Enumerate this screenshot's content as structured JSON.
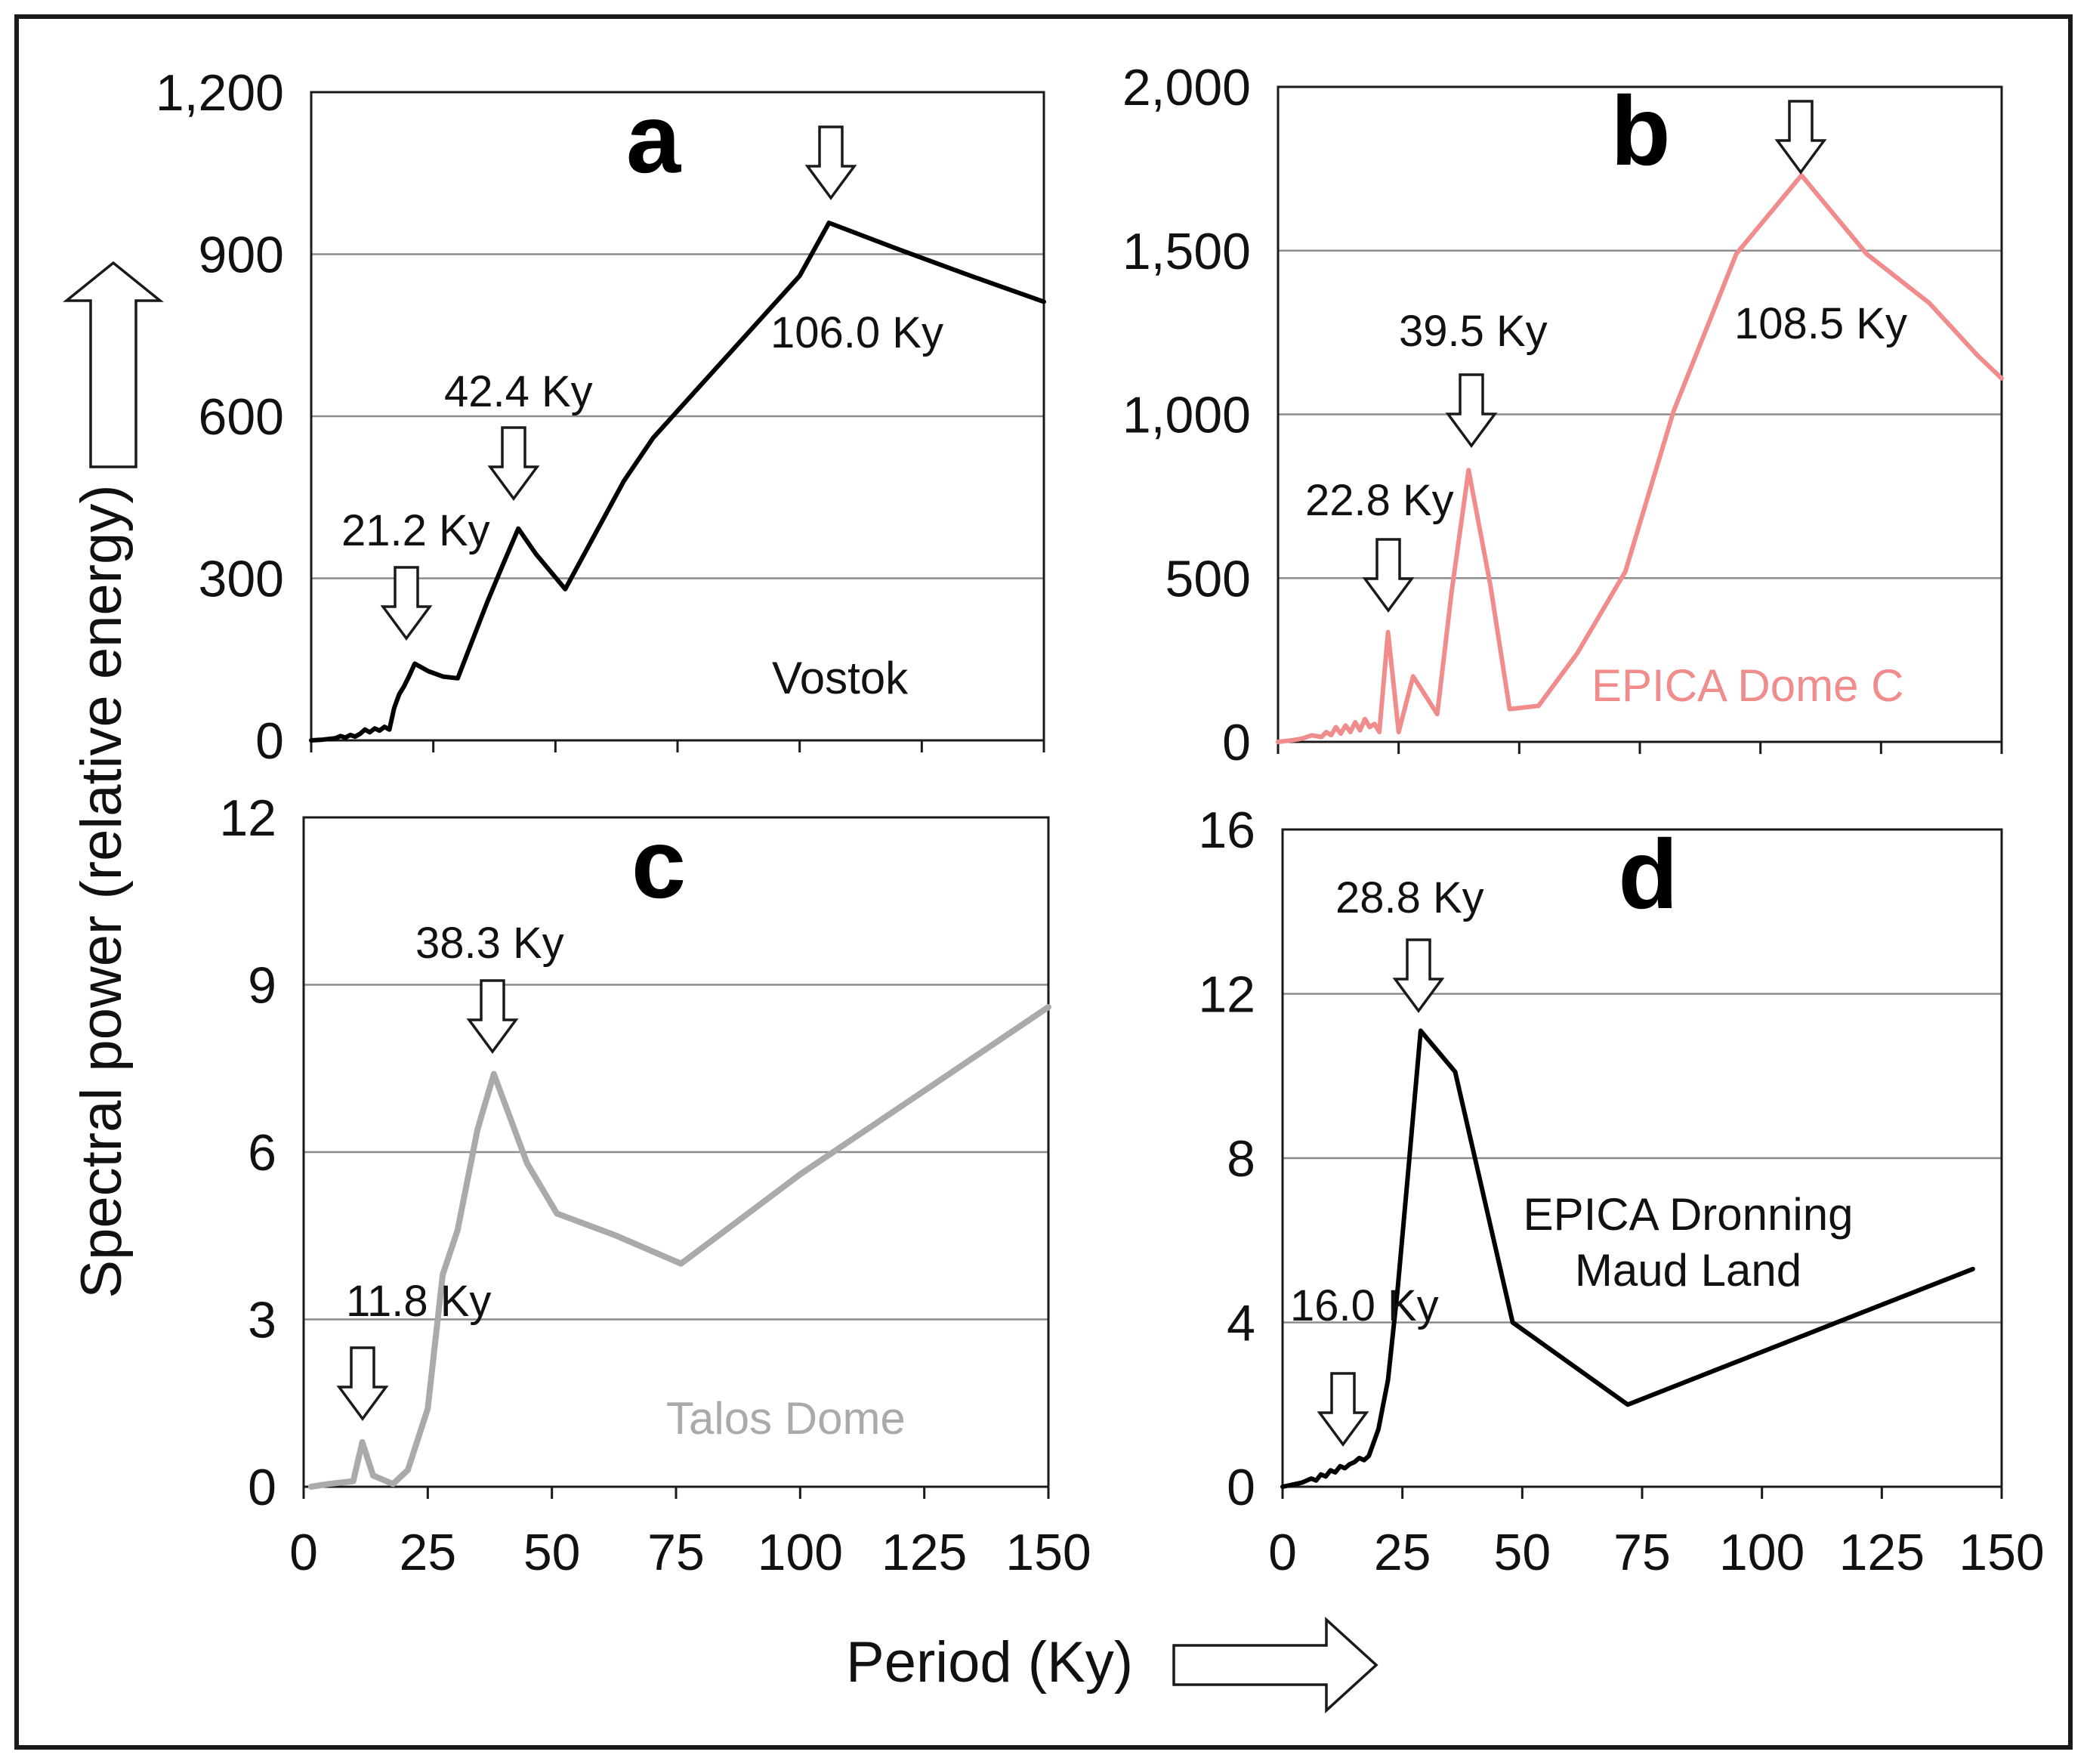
{
  "figure": {
    "ylabel": "Spectral power (relative energy)",
    "xlabel": "Period (Ky)"
  },
  "chart_data": [
    {
      "type": "line",
      "panel": "a",
      "title": "Vostok",
      "xlim": [
        0,
        150
      ],
      "ylim": [
        0,
        1200
      ],
      "x_ticks": [
        "0",
        "25",
        "50",
        "75",
        "100",
        "125",
        "150"
      ],
      "y_ticks": [
        "0",
        "300",
        "600",
        "900",
        "1,200"
      ],
      "x_tick_labels_shown": false,
      "color": "#000000",
      "line_width": 6,
      "series": [
        {
          "name": "Vostok",
          "x": [
            0,
            2,
            4,
            5,
            6,
            7,
            8,
            9,
            10,
            11,
            12,
            13,
            14,
            15,
            16,
            17,
            18,
            19,
            20,
            21.2,
            24,
            27,
            30,
            33,
            36,
            39,
            42.4,
            46,
            52,
            58,
            64,
            70,
            80,
            90,
            100,
            106,
            120,
            135,
            150
          ],
          "y": [
            0,
            1,
            3,
            4,
            8,
            5,
            10,
            7,
            12,
            20,
            15,
            22,
            18,
            25,
            20,
            60,
            85,
            100,
            118,
            142,
            128,
            118,
            115,
            185,
            255,
            320,
            392,
            345,
            280,
            380,
            480,
            560,
            660,
            760,
            860,
            958,
            910,
            860,
            812
          ]
        }
      ],
      "peaks": [
        {
          "label": "21.2 Ky",
          "x": 21.2,
          "y": 142
        },
        {
          "label": "42.4 Ky",
          "x": 42.4,
          "y": 392
        },
        {
          "label": "106.0 Ky",
          "x": 106,
          "y": 958
        }
      ]
    },
    {
      "type": "line",
      "panel": "b",
      "title": "EPICA Dome C",
      "xlim": [
        0,
        150
      ],
      "ylim": [
        0,
        2000
      ],
      "x_ticks": [
        "0",
        "25",
        "50",
        "75",
        "100",
        "125",
        "150"
      ],
      "y_ticks": [
        "0",
        "500",
        "1,000",
        "1,500",
        "2,000"
      ],
      "x_tick_labels_shown": false,
      "color": "#f08c8c",
      "line_width": 6,
      "series": [
        {
          "name": "EPICA Dome C",
          "x": [
            0,
            3,
            5,
            7,
            9,
            10,
            11,
            12,
            13,
            14,
            15,
            16,
            17,
            18,
            19,
            20,
            21,
            22.8,
            25,
            28,
            33,
            36,
            39.5,
            44,
            48,
            54,
            62,
            72,
            82,
            95,
            108.5,
            122,
            135,
            145,
            150
          ],
          "y": [
            0,
            5,
            10,
            20,
            15,
            30,
            20,
            45,
            25,
            50,
            30,
            60,
            35,
            70,
            45,
            55,
            30,
            335,
            30,
            200,
            85,
            460,
            830,
            480,
            100,
            110,
            270,
            520,
            1010,
            1490,
            1730,
            1490,
            1340,
            1180,
            1110
          ]
        }
      ],
      "peaks": [
        {
          "label": "22.8 Ky",
          "x": 22.8,
          "y": 335
        },
        {
          "label": "39.5 Ky",
          "x": 39.5,
          "y": 830
        },
        {
          "label": "108.5 Ky",
          "x": 108.5,
          "y": 1730
        }
      ]
    },
    {
      "type": "line",
      "panel": "c",
      "title": "Talos Dome",
      "xlim": [
        0,
        150
      ],
      "ylim": [
        0,
        12
      ],
      "x_ticks": [
        "0",
        "25",
        "50",
        "75",
        "100",
        "125",
        "150"
      ],
      "y_ticks": [
        "0",
        "3",
        "6",
        "9",
        "12"
      ],
      "x_tick_labels_shown": true,
      "color": "#aaaaaa",
      "line_width": 8,
      "series": [
        {
          "name": "Talos Dome",
          "x": [
            1.5,
            5,
            8,
            10,
            11.8,
            14,
            18,
            21,
            25,
            28,
            31,
            35,
            38.3,
            45,
            51,
            63,
            76,
            100,
            125,
            150
          ],
          "y": [
            0,
            0.05,
            0.08,
            0.1,
            0.8,
            0.2,
            0.05,
            0.3,
            1.4,
            3.8,
            4.6,
            6.4,
            7.4,
            5.8,
            4.9,
            4.5,
            4.0,
            5.6,
            7.1,
            8.6
          ]
        }
      ],
      "peaks": [
        {
          "label": "11.8 Ky",
          "x": 11.8,
          "y": 0.8
        },
        {
          "label": "38.3 Ky",
          "x": 38.3,
          "y": 7.4
        }
      ]
    },
    {
      "type": "line",
      "panel": "d",
      "title": "EPICA Dronning Maud Land",
      "title_lines": [
        "EPICA Dronning",
        "Maud Land"
      ],
      "xlim": [
        0,
        150
      ],
      "ylim": [
        0,
        16
      ],
      "x_ticks": [
        "0",
        "25",
        "50",
        "75",
        "100",
        "125",
        "150"
      ],
      "y_ticks": [
        "0",
        "4",
        "8",
        "12",
        "16"
      ],
      "x_tick_labels_shown": true,
      "color": "#000000",
      "line_width": 6,
      "series": [
        {
          "name": "EPICA Dronning Maud Land",
          "x": [
            0,
            2,
            4,
            6,
            7,
            8,
            9,
            10,
            11,
            12,
            13,
            14,
            15,
            16,
            17,
            18,
            20,
            22,
            24,
            26,
            28.8,
            36,
            48,
            60,
            72,
            96,
            120,
            144
          ],
          "y": [
            0,
            0.05,
            0.1,
            0.2,
            0.15,
            0.3,
            0.25,
            0.4,
            0.35,
            0.5,
            0.45,
            0.55,
            0.6,
            0.7,
            0.65,
            0.75,
            1.4,
            2.6,
            4.8,
            7.4,
            11.1,
            10.1,
            4.0,
            3.0,
            2.0,
            3.1,
            4.2,
            5.3
          ]
        }
      ],
      "peaks": [
        {
          "label": "16.0 Ky",
          "x": 16.0,
          "y": 0.7
        },
        {
          "label": "28.8 Ky",
          "x": 28.8,
          "y": 11.1
        }
      ]
    }
  ]
}
